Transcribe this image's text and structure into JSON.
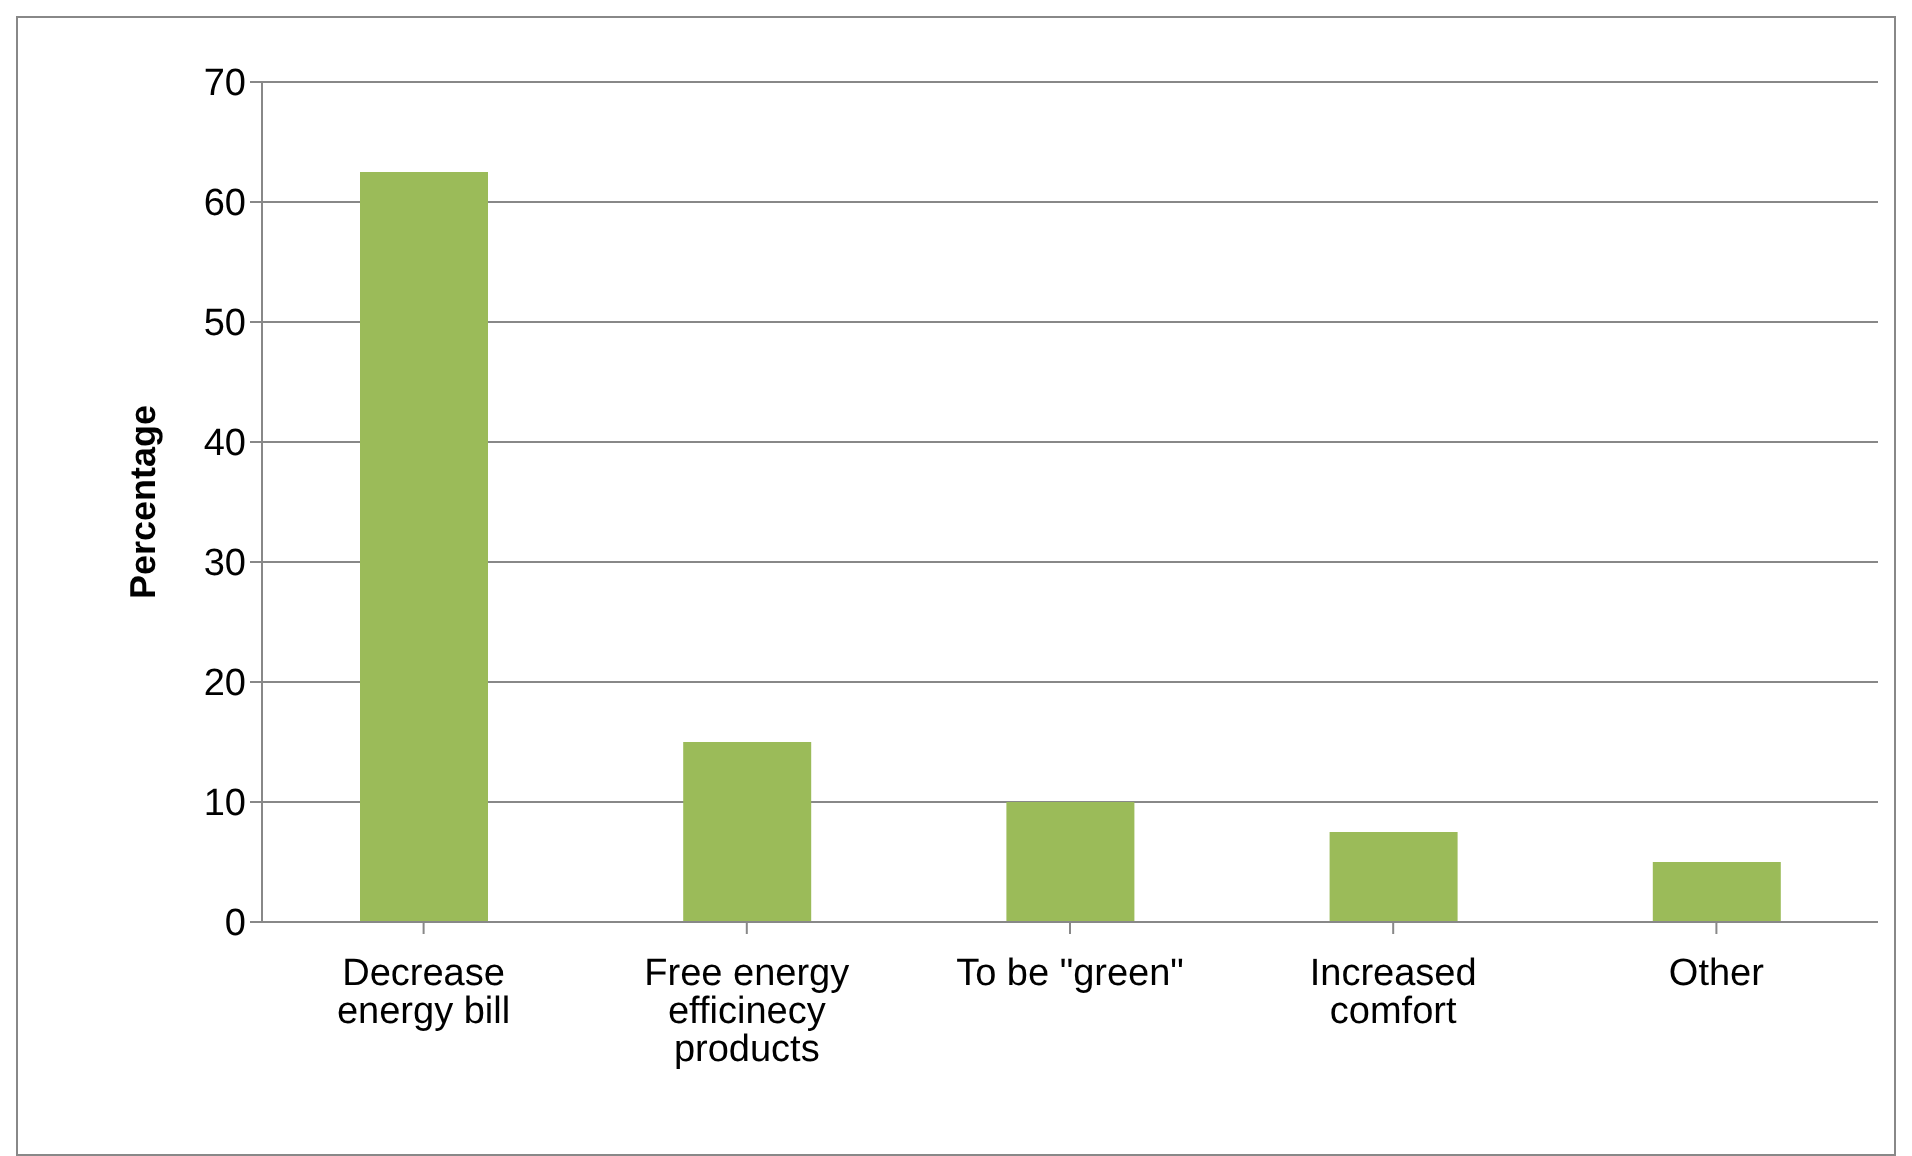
{
  "chart_data": {
    "type": "bar",
    "ylabel": "Percentage",
    "categories": [
      "Decrease energy bill",
      "Free energy efficinecy products",
      "To be \"green\"",
      "Increased comfort",
      "Other"
    ],
    "values": [
      62.5,
      15,
      10,
      7.5,
      5
    ],
    "color": "#9bbb59",
    "ylim": [
      0,
      70
    ],
    "yticks": [
      0,
      10,
      20,
      30,
      40,
      50,
      60,
      70
    ],
    "grid": "y",
    "legend": false
  }
}
